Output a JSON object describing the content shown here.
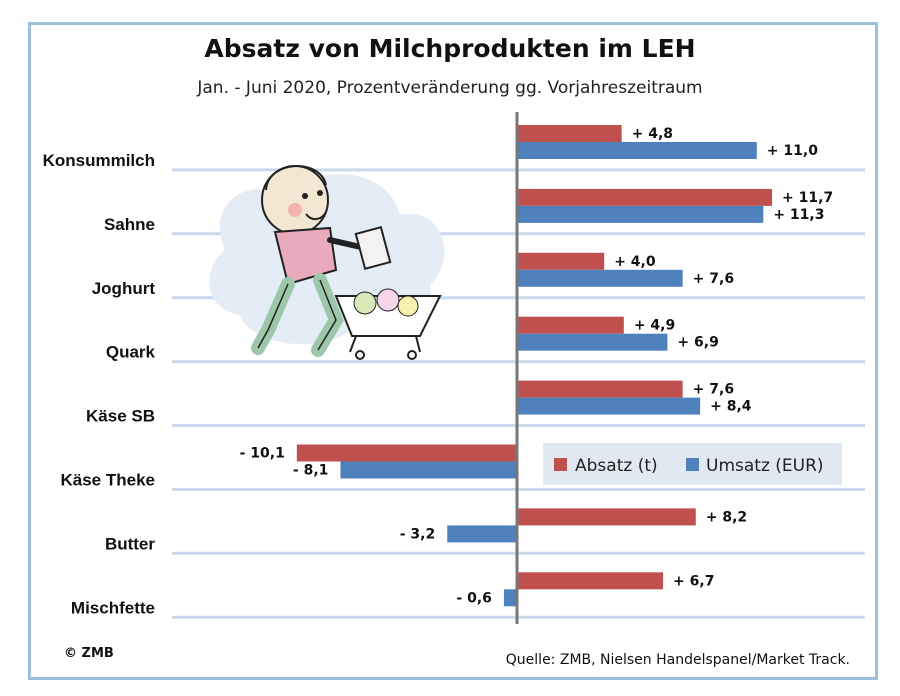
{
  "chart_data": {
    "type": "bar",
    "orientation": "horizontal",
    "title": "Absatz von Milchprodukten im LEH",
    "subtitle": "Jan. - Juni 2020, Prozentveränderung gg. Vorjahreszeitraum",
    "categories": [
      "Konsummilch",
      "Sahne",
      "Joghurt",
      "Quark",
      "Käse SB",
      "Käse Theke",
      "Butter",
      "Mischfette"
    ],
    "series": [
      {
        "name": "Absatz (t)",
        "color": "#c0504d",
        "values": [
          4.8,
          11.7,
          4.0,
          4.9,
          7.6,
          -10.1,
          8.2,
          6.7
        ],
        "labels": [
          "+ 4,8",
          "+ 11,7",
          "+ 4,0",
          "+ 4,9",
          "+ 7,6",
          "- 10,1",
          "+ 8,2",
          "+ 6,7"
        ]
      },
      {
        "name": "Umsatz (EUR)",
        "color": "#4f81bd",
        "values": [
          11.0,
          11.3,
          7.6,
          6.9,
          8.4,
          -8.1,
          -3.2,
          -0.6
        ],
        "labels": [
          "+ 11,0",
          "+ 11,3",
          "+ 7,6",
          "+ 6,9",
          "+ 8,4",
          "- 8,1",
          "- 3,2",
          "- 0,6"
        ]
      }
    ],
    "xlim": [
      -10.8,
      13.5
    ],
    "legend_position": "right",
    "grid": true
  },
  "footer": {
    "copyright": "© ZMB",
    "source": "Quelle: ZMB, Nielsen Handelspanel/Market Track."
  },
  "illustration": {
    "icon": "shopper-with-cart-icon"
  }
}
